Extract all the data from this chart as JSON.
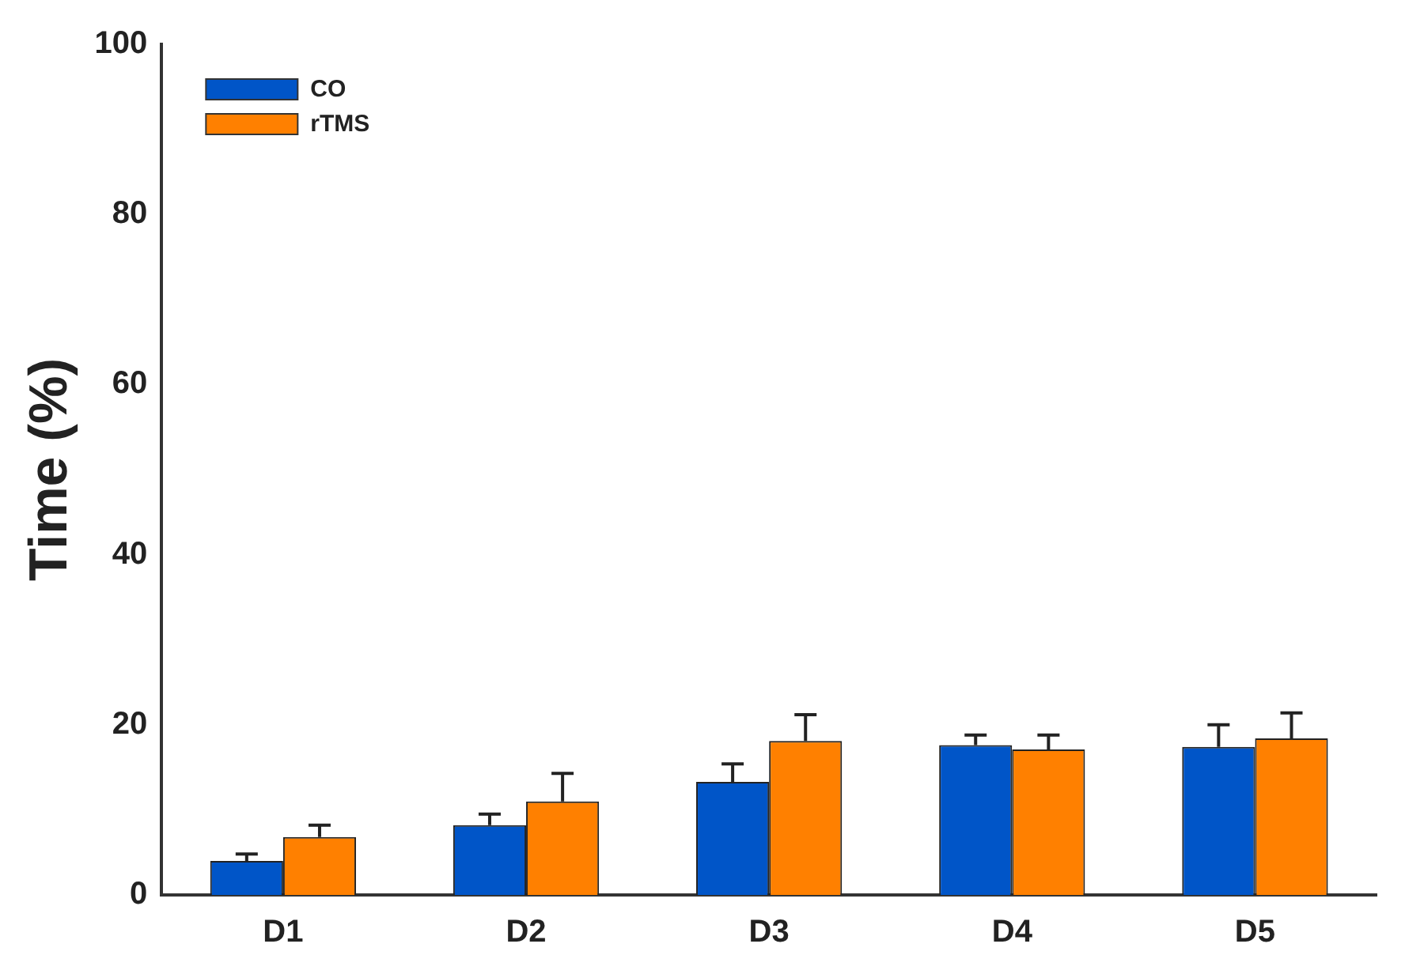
{
  "chart_data": {
    "type": "bar",
    "ylabel": "Time (%)",
    "categories": [
      "D1",
      "D2",
      "D3",
      "D4",
      "D5"
    ],
    "series": [
      {
        "name": "CO",
        "color": "#0055c8",
        "values": [
          4.0,
          8.2,
          13.3,
          17.6,
          17.4
        ],
        "errors": [
          [
            4.0,
            4.8
          ],
          [
            8.2,
            9.5
          ],
          [
            13.3,
            15.4
          ],
          [
            17.6,
            18.8
          ],
          [
            17.4,
            20.0
          ]
        ]
      },
      {
        "name": "rTMS",
        "color": "#ff8000",
        "values": [
          6.8,
          11.0,
          18.1,
          17.1,
          18.4
        ],
        "errors": [
          [
            6.8,
            8.2
          ],
          [
            11.0,
            14.3
          ],
          [
            18.1,
            21.2
          ],
          [
            17.1,
            18.8
          ],
          [
            18.4,
            21.4
          ]
        ]
      }
    ],
    "ylim": [
      0,
      100
    ],
    "yticks": [
      0,
      20,
      40,
      60,
      80,
      100
    ],
    "grid": false,
    "legend": "top left"
  }
}
